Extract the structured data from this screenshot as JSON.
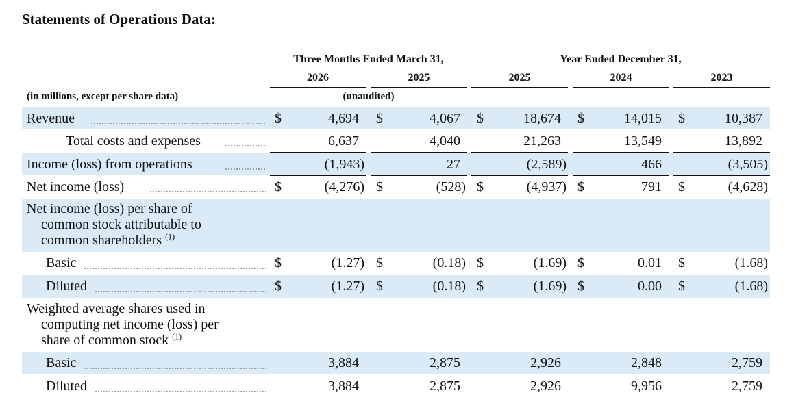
{
  "title": "Statements of Operations Data:",
  "header": {
    "group_a": "Three Months Ended March 31,",
    "group_b": "Year Ended December 31,",
    "years": [
      "2026",
      "2025",
      "2025",
      "2024",
      "2023"
    ],
    "units_label": "(in millions, except per share data)",
    "unaudited": "(unaudited)"
  },
  "currency_symbol": "$",
  "rows": {
    "revenue": {
      "label": "Revenue",
      "values": [
        "4,694",
        "4,067",
        "18,674",
        "14,015",
        "10,387"
      ]
    },
    "total_costs": {
      "label": "Total costs and expenses",
      "values": [
        "6,637",
        "4,040",
        "21,263",
        "13,549",
        "13,892"
      ]
    },
    "income_ops": {
      "label": "Income (loss) from operations",
      "values": [
        "(1,943)",
        "27",
        "(2,589)",
        "466",
        "(3,505)"
      ]
    },
    "net_income": {
      "label": "Net income (loss)",
      "values": [
        "(4,276)",
        "(528)",
        "(4,937)",
        "791",
        "(4,628)"
      ]
    },
    "eps_heading": {
      "lines": [
        "Net income (loss) per share of",
        "common stock attributable to",
        "common shareholders"
      ],
      "footnote": "(1)"
    },
    "eps_basic": {
      "label": "Basic",
      "values": [
        "(1.27)",
        "(0.18)",
        "(1.69)",
        "0.01",
        "(1.68)"
      ]
    },
    "eps_diluted": {
      "label": "Diluted",
      "values": [
        "(1.27)",
        "(0.18)",
        "(1.69)",
        "0.00",
        "(1.68)"
      ]
    },
    "shares_heading": {
      "lines": [
        "Weighted average shares used in",
        "computing net income (loss) per",
        "share of common stock"
      ],
      "footnote": "(1)"
    },
    "shares_basic": {
      "label": "Basic",
      "values": [
        "3,884",
        "2,875",
        "2,926",
        "2,848",
        "2,759"
      ]
    },
    "shares_diluted": {
      "label": "Diluted",
      "values": [
        "3,884",
        "2,875",
        "2,926",
        "9,956",
        "2,759"
      ]
    }
  }
}
